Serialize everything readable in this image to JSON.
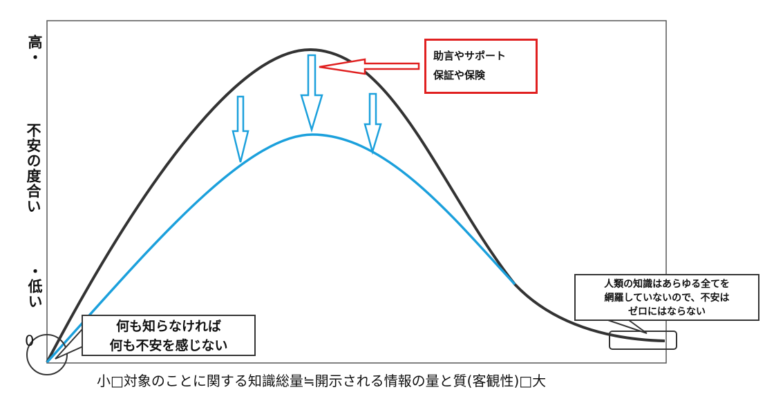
{
  "y_axis": {
    "high_label": "高・",
    "middle_label": "不安の度合い",
    "low_label": "・低い",
    "zero_label": "0"
  },
  "x_axis": {
    "label": "小□対象のことに関する知識総量≒開示される情報の量と質(客観性)□大"
  },
  "callouts": {
    "support": [
      "助言やサポート",
      "保証や保険"
    ],
    "no_knowledge": [
      "何も知らなければ",
      "何も不安を感じない"
    ],
    "never_zero": [
      "人類の知識はあらゆる全てを",
      "網羅していないので、不安は",
      "ゼロにはならない"
    ]
  },
  "colors": {
    "original_curve": "#333333",
    "reduced_curve": "#1ba0dc",
    "arrow": "#1ba0dc",
    "support_box": "#e02020"
  }
}
